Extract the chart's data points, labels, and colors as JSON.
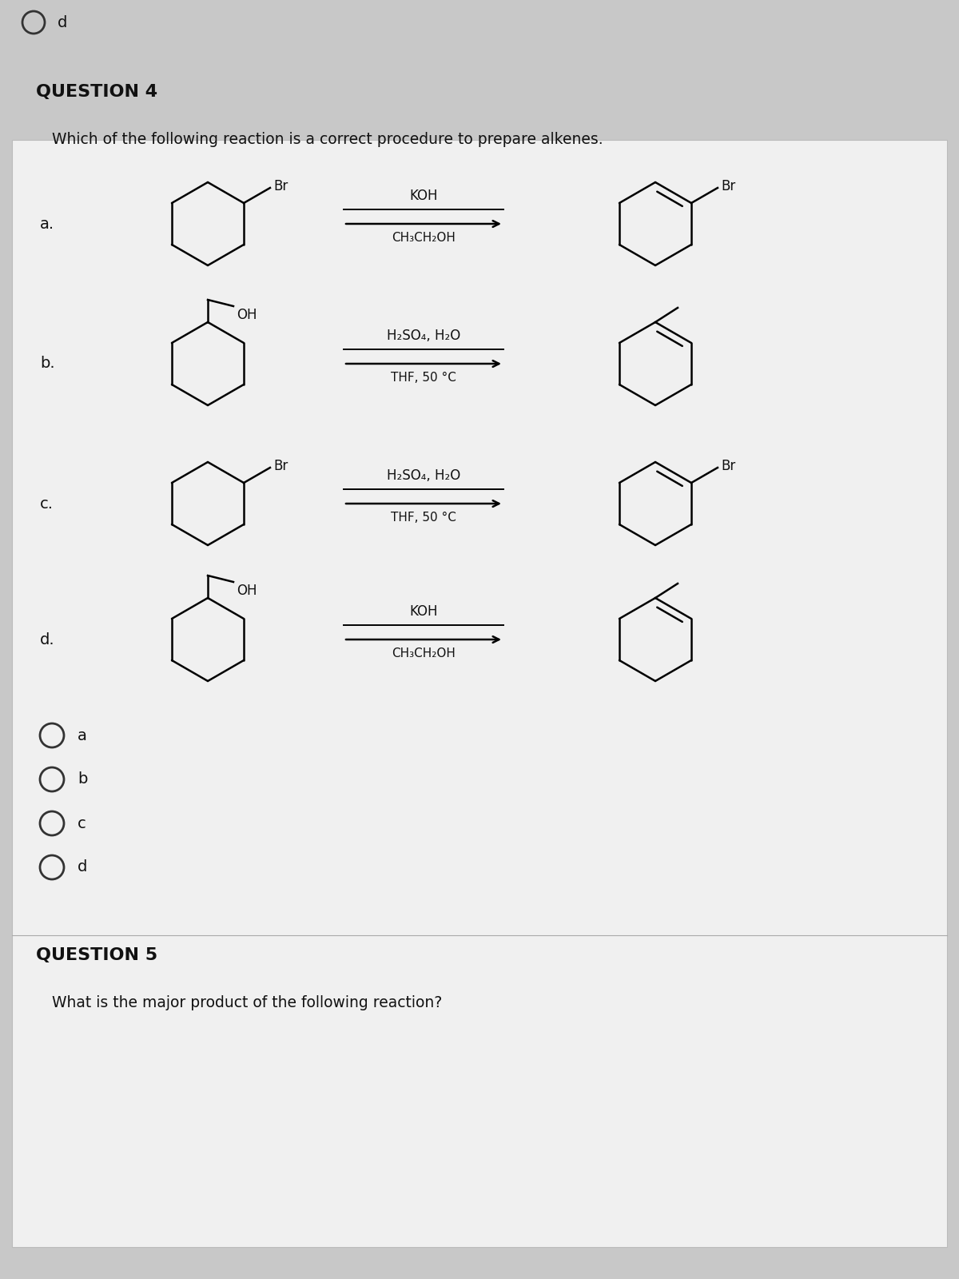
{
  "bg_color": "#c8c8c8",
  "white_box_color": "#f0f0f0",
  "font_color": "#111111",
  "title_q4": "QUESTION 4",
  "subtitle_q4": "Which of the following reaction is a correct procedure to prepare alkenes.",
  "title_q5": "QUESTION 5",
  "subtitle_q5": "What is the major product of the following reaction?",
  "reagent_a_top": "KOH",
  "reagent_a_bot": "CH₃CH₂OH",
  "reagent_b_top": "H₂SO₄, H₂O",
  "reagent_b_bot": "THF, 50 °C",
  "reagent_c_top": "H₂SO₄, H₂O",
  "reagent_c_bot": "THF, 50 °C",
  "reagent_d_top": "KOH",
  "reagent_d_bot": "CH₃CH₂OH",
  "radio_labels": [
    "a",
    "b",
    "c",
    "d"
  ],
  "lw": 1.8,
  "ring_r": 0.52
}
